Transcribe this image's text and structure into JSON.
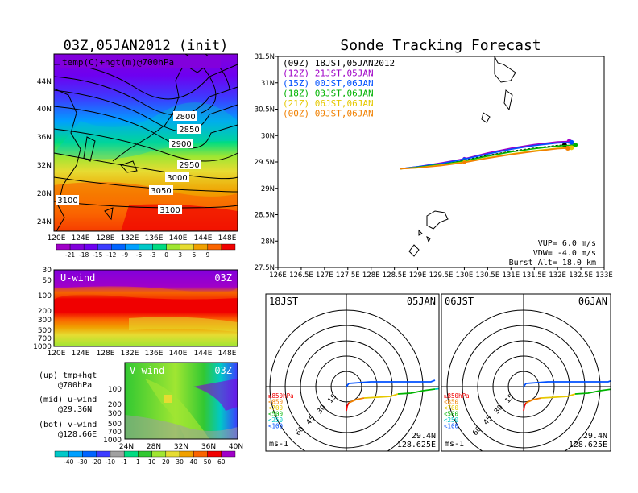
{
  "left": {
    "title": "03Z,05JAN2012 (init)",
    "map_label": "temp(C)+hgt(m)@700hPa",
    "lat_labels": [
      "44N",
      "40N",
      "36N",
      "32N",
      "28N",
      "24N"
    ],
    "lon_labels": [
      "120E",
      "124E",
      "128E",
      "132E",
      "136E",
      "140E",
      "144E",
      "148E"
    ],
    "contours": [
      "2800",
      "2850",
      "2900",
      "2950",
      "3000",
      "3050",
      "3100",
      "3100"
    ],
    "temp_colorbar": {
      "labels": [
        "-21",
        "-18",
        "-15",
        "-12",
        "-9",
        "-6",
        "-3",
        "0",
        "3",
        "6",
        "9"
      ],
      "colors": [
        "#a000c8",
        "#8200dc",
        "#6e00f0",
        "#3c3cff",
        "#0064ff",
        "#00a0ff",
        "#00c8c8",
        "#00dc82",
        "#a0e632",
        "#e6dc32",
        "#f0a000",
        "#fa6400",
        "#f00000"
      ]
    },
    "u_wind": {
      "label": "U-wind",
      "time": "03Z",
      "y_labels": [
        "30",
        "50",
        "100",
        "200",
        "300",
        "500",
        "700",
        "1000"
      ],
      "x_labels": [
        "120E",
        "124E",
        "128E",
        "132E",
        "136E",
        "140E",
        "144E",
        "148E"
      ]
    },
    "v_wind": {
      "label": "V-wind",
      "time": "03Z",
      "y_labels": [
        "100",
        "200",
        "300",
        "500",
        "700",
        "1000"
      ],
      "x_labels": [
        "24N",
        "28N",
        "32N",
        "36N",
        "40N"
      ]
    },
    "notes": [
      {
        "a": "(up) tmp+hgt",
        "b": "@700hPa"
      },
      {
        "a": "(mid) u-wind",
        "b": "@29.36N"
      },
      {
        "a": "(bot) v-wind",
        "b": "@128.66E"
      }
    ],
    "wind_colorbar": {
      "labels": [
        "-40",
        "-30",
        "-20",
        "-10",
        "-1",
        "1",
        "10",
        "20",
        "30",
        "40",
        "50",
        "60"
      ],
      "colors": [
        "#00c8c8",
        "#00a0ff",
        "#0064ff",
        "#3c3cff",
        "#a0a0a0",
        "#00dc82",
        "#32c832",
        "#a0e632",
        "#e6dc32",
        "#f0a000",
        "#fa6400",
        "#f00000",
        "#a000c8"
      ]
    }
  },
  "main": {
    "title": "Sonde Tracking Forecast",
    "legend": [
      {
        "code": "(09Z)",
        "text": "18JST,05JAN2012",
        "color": "#000000"
      },
      {
        "code": "(12Z)",
        "text": "21JST,05JAN",
        "color": "#a000c8"
      },
      {
        "code": "(15Z)",
        "text": "00JST,06JAN",
        "color": "#0050ff"
      },
      {
        "code": "(18Z)",
        "text": "03JST,06JAN",
        "color": "#00b400"
      },
      {
        "code": "(21Z)",
        "text": "06JST,06JAN",
        "color": "#e6c800"
      },
      {
        "code": "(00Z)",
        "text": "09JST,06JAN",
        "color": "#f08000"
      }
    ],
    "params": [
      "VUP= 6.0 m/s",
      "VDW= -4.0 m/s",
      "Burst Alt= 18.0 km"
    ]
  },
  "chart_data": [
    {
      "type": "line",
      "title": "Sonde Tracking Forecast",
      "xlabel": "",
      "ylabel": "",
      "xlim": [
        126,
        133
      ],
      "ylim": [
        27.5,
        31.5
      ],
      "x_ticks": [
        "126E",
        "126.5E",
        "127E",
        "127.5E",
        "128E",
        "128.5E",
        "129E",
        "129.5E",
        "130E",
        "130.5E",
        "131E",
        "131.5E",
        "132E",
        "132.5E",
        "133E"
      ],
      "y_ticks": [
        "27.5N",
        "28N",
        "28.5N",
        "29N",
        "29.5N",
        "30N",
        "30.5N",
        "31N",
        "31.5N"
      ],
      "series": [
        {
          "name": "(09Z) 18JST,05JAN2012",
          "color": "#000000",
          "x": [
            128.625,
            129.0,
            129.5,
            130.0,
            130.5,
            131.0,
            131.5,
            132.0,
            132.15
          ],
          "y": [
            29.37,
            29.4,
            29.46,
            29.53,
            29.62,
            29.7,
            29.76,
            29.81,
            29.82
          ]
        },
        {
          "name": "(12Z) 21JST,05JAN",
          "color": "#a000c8",
          "x": [
            128.625,
            129.0,
            129.5,
            130.0,
            130.5,
            131.0,
            131.5,
            132.0,
            132.25
          ],
          "y": [
            29.37,
            29.41,
            29.48,
            29.56,
            29.67,
            29.76,
            29.83,
            29.88,
            29.89
          ]
        },
        {
          "name": "(15Z) 00JST,06JAN",
          "color": "#0050ff",
          "x": [
            128.625,
            129.0,
            129.5,
            130.0,
            130.5,
            131.0,
            131.5,
            132.0,
            132.3
          ],
          "y": [
            29.37,
            29.41,
            29.47,
            29.55,
            29.65,
            29.74,
            29.81,
            29.86,
            29.87
          ]
        },
        {
          "name": "(18Z) 03JST,06JAN",
          "color": "#00b400",
          "x": [
            128.625,
            129.0,
            129.5,
            130.0,
            130.5,
            131.0,
            131.5,
            132.0,
            132.38
          ],
          "y": [
            29.37,
            29.4,
            29.45,
            29.52,
            29.61,
            29.69,
            29.75,
            29.8,
            29.82
          ]
        },
        {
          "name": "(21Z) 06JST,06JAN",
          "color": "#e6c800",
          "x": [
            128.625,
            129.0,
            129.5,
            130.0,
            130.5,
            131.0,
            131.5,
            132.0,
            132.3
          ],
          "y": [
            29.37,
            29.39,
            29.44,
            29.5,
            29.58,
            29.65,
            29.71,
            29.76,
            29.77
          ]
        },
        {
          "name": "(00Z) 09JST,06JAN",
          "color": "#f08000",
          "x": [
            128.625,
            129.0,
            129.5,
            130.0,
            130.5,
            131.0,
            131.5,
            132.0,
            132.22
          ],
          "y": [
            29.37,
            29.39,
            29.43,
            29.49,
            29.57,
            29.64,
            29.7,
            29.75,
            29.76
          ]
        }
      ]
    },
    {
      "type": "hodograph",
      "left_time": "18JST",
      "right_date": "05JAN",
      "units": "ms-1",
      "ring_labels": [
        "15",
        "30",
        "45",
        "60"
      ],
      "position": [
        "29.4N",
        "128.625E"
      ],
      "level_legend": [
        {
          "label": "≥850hPa",
          "color": "#f00000"
        },
        {
          "label": "<850",
          "color": "#f08000"
        },
        {
          "label": "<700",
          "color": "#e6c800"
        },
        {
          "label": "<500",
          "color": "#00b400"
        },
        {
          "label": "<250",
          "color": "#00c8c8"
        },
        {
          "label": "<100",
          "color": "#0050ff"
        }
      ]
    },
    {
      "type": "hodograph",
      "left_time": "06JST",
      "right_date": "06JAN",
      "units": "ms-1",
      "ring_labels": [
        "15",
        "30",
        "45",
        "60"
      ],
      "position": [
        "29.4N",
        "128.625E"
      ],
      "level_legend": [
        {
          "label": "≥850hPa",
          "color": "#f00000"
        },
        {
          "label": "<850",
          "color": "#f08000"
        },
        {
          "label": "<700",
          "color": "#e6c800"
        },
        {
          "label": "<500",
          "color": "#00b400"
        },
        {
          "label": "<250",
          "color": "#00c8c8"
        },
        {
          "label": "<100",
          "color": "#0050ff"
        }
      ]
    }
  ]
}
